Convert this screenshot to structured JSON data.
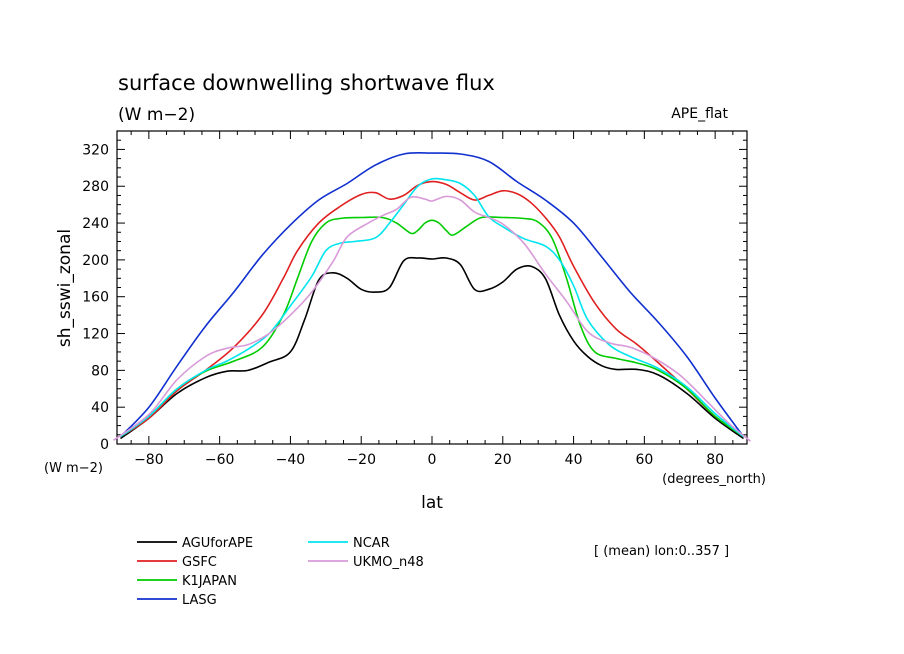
{
  "chart_data": {
    "type": "line",
    "title": "surface downwelling shortwave flux",
    "units": "(W m−2)",
    "dataset_label": "APE_flat",
    "ylabel": "sh_sswi_zonal",
    "xlabel": "lat",
    "y_units_label": "(W m−2)",
    "x_units_label": "(degrees_north)",
    "note": "[ (mean) lon:0..357 ]",
    "xlim": [
      -89,
      89
    ],
    "ylim": [
      0,
      340
    ],
    "x_ticks": [
      -80,
      -60,
      -40,
      -20,
      0,
      20,
      40,
      60,
      80
    ],
    "y_ticks": [
      0,
      40,
      80,
      120,
      160,
      200,
      240,
      280,
      320
    ],
    "grid": false,
    "legend_position": "bottom-left",
    "series": [
      {
        "name": "AGUforAPE",
        "color": "#000000",
        "points": [
          [
            -88,
            6
          ],
          [
            -80,
            28
          ],
          [
            -72,
            55
          ],
          [
            -64,
            72
          ],
          [
            -58,
            79
          ],
          [
            -52,
            80
          ],
          [
            -46,
            89
          ],
          [
            -40,
            100
          ],
          [
            -36,
            135
          ],
          [
            -32,
            178
          ],
          [
            -28,
            186
          ],
          [
            -24,
            180
          ],
          [
            -20,
            168
          ],
          [
            -16,
            165
          ],
          [
            -12,
            170
          ],
          [
            -8,
            199
          ],
          [
            -4,
            202
          ],
          [
            0,
            201
          ],
          [
            4,
            202
          ],
          [
            8,
            195
          ],
          [
            12,
            168
          ],
          [
            16,
            168
          ],
          [
            20,
            176
          ],
          [
            24,
            190
          ],
          [
            28,
            193
          ],
          [
            32,
            180
          ],
          [
            36,
            140
          ],
          [
            40,
            112
          ],
          [
            44,
            95
          ],
          [
            48,
            85
          ],
          [
            52,
            81
          ],
          [
            58,
            81
          ],
          [
            64,
            75
          ],
          [
            72,
            55
          ],
          [
            80,
            28
          ],
          [
            88,
            6
          ]
        ]
      },
      {
        "name": "GSFC",
        "color": "#e02020",
        "points": [
          [
            -88,
            8
          ],
          [
            -80,
            28
          ],
          [
            -72,
            58
          ],
          [
            -64,
            80
          ],
          [
            -56,
            105
          ],
          [
            -48,
            140
          ],
          [
            -42,
            180
          ],
          [
            -38,
            210
          ],
          [
            -32,
            240
          ],
          [
            -26,
            258
          ],
          [
            -20,
            271
          ],
          [
            -16,
            273
          ],
          [
            -12,
            266
          ],
          [
            -8,
            270
          ],
          [
            -4,
            281
          ],
          [
            0,
            285
          ],
          [
            4,
            282
          ],
          [
            8,
            273
          ],
          [
            12,
            265
          ],
          [
            16,
            270
          ],
          [
            20,
            275
          ],
          [
            24,
            272
          ],
          [
            28,
            262
          ],
          [
            32,
            246
          ],
          [
            36,
            225
          ],
          [
            40,
            193
          ],
          [
            46,
            153
          ],
          [
            52,
            125
          ],
          [
            58,
            108
          ],
          [
            64,
            88
          ],
          [
            72,
            60
          ],
          [
            80,
            30
          ],
          [
            88,
            8
          ]
        ]
      },
      {
        "name": "K1JAPAN",
        "color": "#00cc00",
        "points": [
          [
            -88,
            8
          ],
          [
            -80,
            30
          ],
          [
            -72,
            60
          ],
          [
            -64,
            79
          ],
          [
            -56,
            90
          ],
          [
            -48,
            105
          ],
          [
            -42,
            140
          ],
          [
            -38,
            180
          ],
          [
            -34,
            220
          ],
          [
            -30,
            240
          ],
          [
            -26,
            245
          ],
          [
            -20,
            246
          ],
          [
            -14,
            246
          ],
          [
            -10,
            240
          ],
          [
            -6,
            229
          ],
          [
            -4,
            232
          ],
          [
            -2,
            240
          ],
          [
            0,
            243
          ],
          [
            2,
            240
          ],
          [
            4,
            232
          ],
          [
            6,
            227
          ],
          [
            10,
            237
          ],
          [
            14,
            246
          ],
          [
            20,
            246
          ],
          [
            26,
            245
          ],
          [
            30,
            241
          ],
          [
            34,
            223
          ],
          [
            38,
            180
          ],
          [
            42,
            128
          ],
          [
            46,
            100
          ],
          [
            52,
            93
          ],
          [
            58,
            88
          ],
          [
            64,
            80
          ],
          [
            72,
            60
          ],
          [
            80,
            30
          ],
          [
            88,
            8
          ]
        ]
      },
      {
        "name": "LASG",
        "color": "#1030d0",
        "points": [
          [
            -88,
            8
          ],
          [
            -80,
            40
          ],
          [
            -72,
            85
          ],
          [
            -64,
            128
          ],
          [
            -56,
            165
          ],
          [
            -48,
            205
          ],
          [
            -40,
            238
          ],
          [
            -32,
            265
          ],
          [
            -24,
            283
          ],
          [
            -16,
            303
          ],
          [
            -8,
            315
          ],
          [
            0,
            316
          ],
          [
            8,
            315
          ],
          [
            16,
            307
          ],
          [
            24,
            285
          ],
          [
            32,
            265
          ],
          [
            40,
            240
          ],
          [
            48,
            203
          ],
          [
            56,
            165
          ],
          [
            64,
            132
          ],
          [
            72,
            95
          ],
          [
            80,
            50
          ],
          [
            88,
            8
          ]
        ]
      },
      {
        "name": "NCAR",
        "color": "#00e5ee",
        "points": [
          [
            -88,
            8
          ],
          [
            -80,
            30
          ],
          [
            -72,
            60
          ],
          [
            -64,
            80
          ],
          [
            -58,
            90
          ],
          [
            -52,
            103
          ],
          [
            -46,
            120
          ],
          [
            -40,
            150
          ],
          [
            -34,
            182
          ],
          [
            -30,
            210
          ],
          [
            -26,
            218
          ],
          [
            -22,
            220
          ],
          [
            -16,
            224
          ],
          [
            -12,
            240
          ],
          [
            -8,
            260
          ],
          [
            -4,
            280
          ],
          [
            0,
            288
          ],
          [
            4,
            287
          ],
          [
            8,
            283
          ],
          [
            12,
            270
          ],
          [
            16,
            247
          ],
          [
            20,
            236
          ],
          [
            26,
            223
          ],
          [
            32,
            215
          ],
          [
            36,
            200
          ],
          [
            40,
            172
          ],
          [
            44,
            135
          ],
          [
            50,
            108
          ],
          [
            56,
            95
          ],
          [
            64,
            82
          ],
          [
            72,
            62
          ],
          [
            80,
            33
          ],
          [
            88,
            8
          ]
        ]
      },
      {
        "name": "UKMO_n48",
        "color": "#d89ad8",
        "points": [
          [
            -90,
            4
          ],
          [
            -80,
            32
          ],
          [
            -72,
            70
          ],
          [
            -64,
            95
          ],
          [
            -58,
            104
          ],
          [
            -52,
            108
          ],
          [
            -46,
            120
          ],
          [
            -40,
            140
          ],
          [
            -34,
            165
          ],
          [
            -28,
            198
          ],
          [
            -24,
            225
          ],
          [
            -18,
            240
          ],
          [
            -14,
            248
          ],
          [
            -10,
            255
          ],
          [
            -6,
            268
          ],
          [
            -2,
            266
          ],
          [
            0,
            264
          ],
          [
            4,
            269
          ],
          [
            8,
            265
          ],
          [
            12,
            252
          ],
          [
            16,
            246
          ],
          [
            20,
            239
          ],
          [
            26,
            218
          ],
          [
            32,
            185
          ],
          [
            38,
            155
          ],
          [
            44,
            122
          ],
          [
            50,
            110
          ],
          [
            56,
            105
          ],
          [
            62,
            95
          ],
          [
            70,
            75
          ],
          [
            78,
            45
          ],
          [
            84,
            22
          ],
          [
            90,
            3
          ]
        ]
      }
    ]
  }
}
